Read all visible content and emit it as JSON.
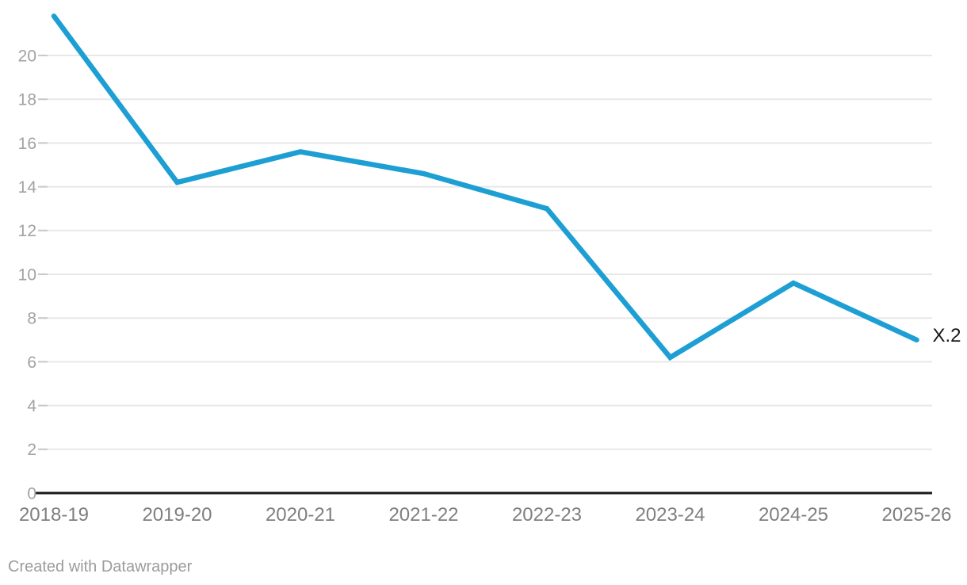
{
  "chart_data": {
    "type": "line",
    "x": [
      "2018-19",
      "2019-20",
      "2020-21",
      "2021-22",
      "2022-23",
      "2023-24",
      "2024-25",
      "2025-26"
    ],
    "series": [
      {
        "name": "X.2",
        "values": [
          21.8,
          14.2,
          15.6,
          14.6,
          13.0,
          6.2,
          9.6,
          7.0
        ]
      }
    ],
    "yticks": [
      0,
      2,
      4,
      6,
      8,
      10,
      12,
      14,
      16,
      18,
      20
    ],
    "ylim": [
      0,
      22.5
    ],
    "grid": true,
    "legend_position": "none",
    "end_label": "X.2"
  },
  "colors": {
    "line": "#1e9fd4",
    "grid": "#e8e8e8",
    "tick": "#c9c9c9",
    "baseline": "#191919",
    "y_label": "#a2a2a2",
    "x_label": "#7f7f7f",
    "end_label": "#191919",
    "footer": "#9c9c9c",
    "background": "#ffffff"
  },
  "footer": {
    "attribution": "Created with Datawrapper"
  }
}
